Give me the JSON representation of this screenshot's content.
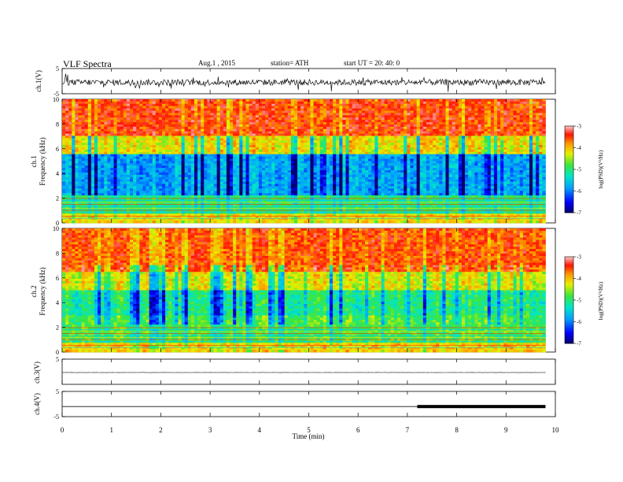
{
  "header": {
    "title": "VLF  Spectra",
    "date": "Aug.1  , 2015",
    "station": "station= ATH",
    "start": "start  UT =   20: 40: 0"
  },
  "chart_data": {
    "type": "heatmap",
    "x_axis": {
      "label": "Time  (min)",
      "range": [
        0,
        10
      ],
      "ticks": [
        "0",
        "1",
        "2",
        "3",
        "4",
        "5",
        "6",
        "7",
        "8",
        "9",
        "10"
      ]
    },
    "panels": [
      {
        "id": "ch1-wave",
        "type": "line",
        "ylabel": "ch.1(V)",
        "ylim": [
          -5,
          5
        ],
        "yticks": [
          "5",
          "-5"
        ],
        "baseline": -0.5,
        "noise_amplitude": 1.2
      },
      {
        "id": "ch1-spec",
        "type": "heatmap",
        "ylabel_top": "ch.1",
        "ylabel": "Frequency  (kHz)",
        "ylim": [
          0,
          10
        ],
        "yticks": [
          "0",
          "2",
          "4",
          "6",
          "8",
          "10"
        ],
        "colorbar": {
          "label": "log(PSD)(V²/Hz)",
          "range": [
            -7,
            -3
          ],
          "ticks": [
            "-3",
            "-4",
            "-5",
            "-6",
            "-7"
          ]
        }
      },
      {
        "id": "ch2-spec",
        "type": "heatmap",
        "ylabel_top": "ch.2",
        "ylabel": "Frequency  (kHz)",
        "ylim": [
          0,
          10
        ],
        "yticks": [
          "0",
          "2",
          "4",
          "6",
          "8",
          "10"
        ],
        "colorbar": {
          "label": "log(PSD)(V²/Hz)",
          "range": [
            -7,
            -3
          ],
          "ticks": [
            "-3",
            "-4",
            "-5",
            "-6",
            "-7"
          ]
        }
      },
      {
        "id": "ch3-wave",
        "type": "line",
        "ylabel": "ch.3(V)",
        "ylim": [
          -5,
          5
        ],
        "yticks": [
          "5"
        ],
        "baseline": -0.3,
        "noise_amplitude": 0.05
      },
      {
        "id": "ch4-wave",
        "type": "line",
        "ylabel": "ch.4(V)",
        "ylim": [
          -5,
          5
        ],
        "yticks": [
          "5",
          "-5"
        ],
        "baseline": -1.0,
        "noise_amplitude": 0.0,
        "thick_segment": {
          "x_start": 7.2,
          "x_end": 9.8
        }
      }
    ],
    "data_end_min": 9.8
  }
}
